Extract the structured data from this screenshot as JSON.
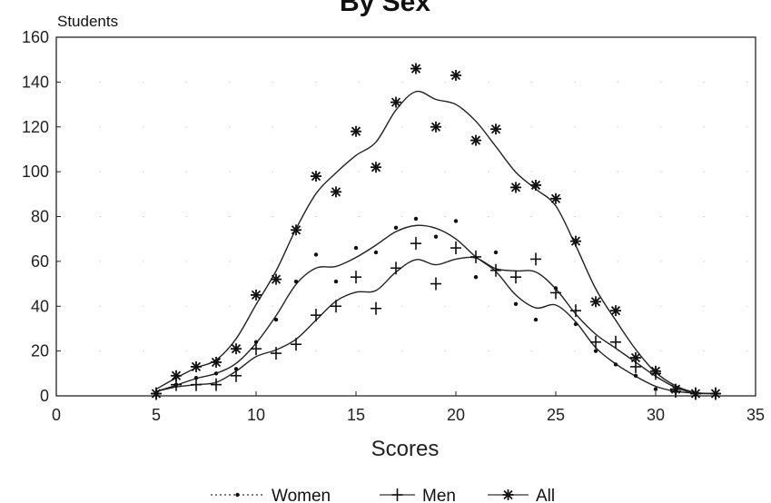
{
  "chart_data": {
    "type": "line",
    "title": "By Sex",
    "xlabel": "Scores",
    "ylabel": "Students",
    "xlim": [
      0,
      35
    ],
    "ylim": [
      0,
      160
    ],
    "xticks": [
      0,
      5,
      10,
      15,
      20,
      25,
      30,
      35
    ],
    "yticks": [
      0,
      20,
      40,
      60,
      80,
      100,
      120,
      140,
      160
    ],
    "x": [
      5,
      6,
      7,
      8,
      9,
      10,
      11,
      12,
      13,
      14,
      15,
      16,
      17,
      18,
      19,
      20,
      21,
      22,
      23,
      24,
      25,
      26,
      27,
      28,
      29,
      30,
      31,
      32,
      33
    ],
    "series": [
      {
        "name": "Women",
        "marker": "dot",
        "values": [
          1,
          5,
          8,
          10,
          12,
          24,
          34,
          51,
          63,
          51,
          66,
          64,
          75,
          79,
          71,
          78,
          53,
          64,
          41,
          34,
          48,
          32,
          20,
          14,
          9,
          3,
          2,
          1,
          1
        ]
      },
      {
        "name": "Men",
        "marker": "plus",
        "values": [
          1,
          5,
          5,
          5,
          9,
          21,
          19,
          23,
          36,
          40,
          53,
          39,
          57,
          68,
          50,
          66,
          62,
          56,
          53,
          61,
          46,
          38,
          24,
          24,
          13,
          10,
          2,
          1,
          1
        ]
      },
      {
        "name": "All",
        "marker": "asterisk",
        "values": [
          1,
          9,
          13,
          15,
          21,
          45,
          52,
          74,
          98,
          91,
          118,
          102,
          131,
          146,
          120,
          143,
          114,
          119,
          93,
          94,
          88,
          69,
          42,
          38,
          17,
          11,
          3,
          1,
          1
        ]
      }
    ],
    "grid": "sparse dotted",
    "legend": {
      "position": "bottom-center"
    }
  }
}
